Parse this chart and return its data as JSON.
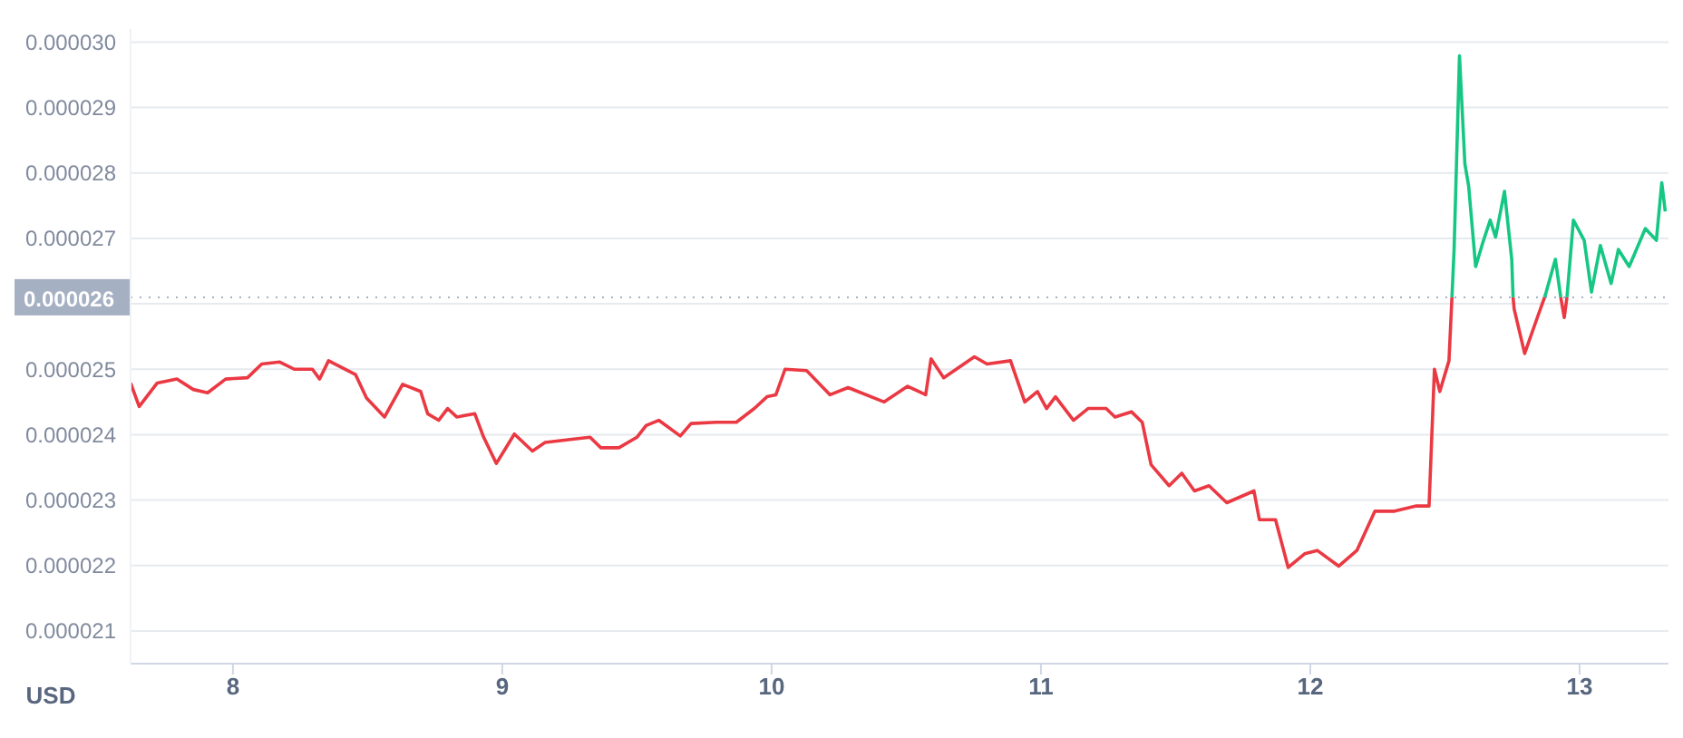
{
  "chart_data": {
    "type": "line",
    "ylabel": "USD",
    "xlim": [
      7.62,
      13.33
    ],
    "xticks": [
      8,
      9,
      10,
      11,
      12,
      13
    ],
    "ylim": [
      2.05e-05,
      3.02e-05
    ],
    "yticks": [
      {
        "value": 2.1e-05,
        "label": "0.000021"
      },
      {
        "value": 2.2e-05,
        "label": "0.000022"
      },
      {
        "value": 2.3e-05,
        "label": "0.000023"
      },
      {
        "value": 2.4e-05,
        "label": "0.000024"
      },
      {
        "value": 2.5e-05,
        "label": "0.000025"
      },
      {
        "value": 2.6e-05,
        "label": null
      },
      {
        "value": 2.7e-05,
        "label": "0.000027"
      },
      {
        "value": 2.8e-05,
        "label": "0.000028"
      },
      {
        "value": 2.9e-05,
        "label": "0.000029"
      },
      {
        "value": 3e-05,
        "label": "0.000030"
      }
    ],
    "grid": "y",
    "marker": "none",
    "line_style": "solid",
    "ref_lines": [
      {
        "axis": "y",
        "value": 2.61e-05,
        "label": "0.000026",
        "color": "#a6b0c3",
        "line_style": "dotted"
      }
    ],
    "series": [
      {
        "color": "#ea3943",
        "x": [
          7.62,
          7.652,
          7.719,
          7.792,
          7.853,
          7.906,
          7.973,
          8.054,
          8.107,
          8.174,
          8.228,
          8.295,
          8.322,
          8.355,
          8.455,
          8.496,
          8.563,
          8.63,
          8.697,
          8.723,
          8.764,
          8.797,
          8.831,
          8.898,
          8.931,
          8.978,
          9.045,
          9.112,
          9.159,
          9.259,
          9.326,
          9.366,
          9.433,
          9.5,
          9.534,
          9.581,
          9.661,
          9.701,
          9.795,
          9.869,
          9.936,
          9.983,
          10.016,
          10.05,
          10.13,
          10.217,
          10.284,
          10.418,
          10.505,
          10.572,
          10.592,
          10.639,
          10.753,
          10.8,
          10.887,
          10.94,
          10.987,
          11.021,
          11.054,
          11.121,
          11.175,
          11.242,
          11.275,
          11.336,
          11.376,
          11.409,
          11.476,
          11.523,
          11.57,
          11.624,
          11.69,
          11.791,
          11.811,
          11.871,
          11.918,
          11.979,
          12.026,
          12.106,
          12.173,
          12.24,
          12.313,
          12.394,
          12.441,
          12.461,
          12.481,
          12.515,
          12.526,
          12.6,
          12.753,
          12.757,
          12.796,
          12.843,
          12.87,
          12.9,
          12.93,
          12.943,
          12.953
        ],
        "values": [
          2.479e-05,
          2.443e-05,
          2.479e-05,
          2.485e-05,
          2.469e-05,
          2.464e-05,
          2.485e-05,
          2.487e-05,
          2.508e-05,
          2.511e-05,
          2.5e-05,
          2.5e-05,
          2.485e-05,
          2.513e-05,
          2.492e-05,
          2.456e-05,
          2.427e-05,
          2.477e-05,
          2.466e-05,
          2.432e-05,
          2.422e-05,
          2.44e-05,
          2.427e-05,
          2.432e-05,
          2.396e-05,
          2.356e-05,
          2.401e-05,
          2.375e-05,
          2.388e-05,
          2.393e-05,
          2.396e-05,
          2.38e-05,
          2.38e-05,
          2.396e-05,
          2.414e-05,
          2.422e-05,
          2.398e-05,
          2.417e-05,
          2.419e-05,
          2.419e-05,
          2.44e-05,
          2.458e-05,
          2.461e-05,
          2.5e-05,
          2.498e-05,
          2.461e-05,
          2.472e-05,
          2.45e-05,
          2.474e-05,
          2.461e-05,
          2.516e-05,
          2.487e-05,
          2.519e-05,
          2.508e-05,
          2.513e-05,
          2.45e-05,
          2.466e-05,
          2.44e-05,
          2.458e-05,
          2.422e-05,
          2.44e-05,
          2.44e-05,
          2.427e-05,
          2.435e-05,
          2.419e-05,
          2.354e-05,
          2.322e-05,
          2.341e-05,
          2.314e-05,
          2.322e-05,
          2.296e-05,
          2.314e-05,
          2.27e-05,
          2.27e-05,
          2.197e-05,
          2.218e-05,
          2.223e-05,
          2.199e-05,
          2.223e-05,
          2.283e-05,
          2.283e-05,
          2.291e-05,
          2.291e-05,
          2.5e-05,
          2.466e-05,
          2.513e-05,
          2.61e-05,
          null,
          2.61e-05,
          2.592e-05,
          2.524e-05,
          2.579e-05,
          2.61e-05,
          null,
          2.61e-05,
          2.579e-05,
          2.61e-05
        ]
      },
      {
        "color": "#16c784",
        "x": [
          12.526,
          12.534,
          12.554,
          12.574,
          12.588,
          12.614,
          12.641,
          12.668,
          12.688,
          12.721,
          12.748,
          12.753,
          12.8,
          12.87,
          12.876,
          12.91,
          12.93,
          12.94,
          12.953,
          12.977,
          13.017,
          13.044,
          13.077,
          13.117,
          13.144,
          13.184,
          13.244,
          13.285,
          13.305,
          13.318
        ],
        "values": [
          2.61e-05,
          2.683e-05,
          2.979e-05,
          2.814e-05,
          2.78e-05,
          2.657e-05,
          2.694e-05,
          2.728e-05,
          2.702e-05,
          2.772e-05,
          2.668e-05,
          2.61e-05,
          null,
          2.61e-05,
          2.618e-05,
          2.668e-05,
          2.61e-05,
          null,
          2.61e-05,
          2.728e-05,
          2.697e-05,
          2.618e-05,
          2.689e-05,
          2.631e-05,
          2.683e-05,
          2.657e-05,
          2.715e-05,
          2.697e-05,
          2.785e-05,
          2.741e-05
        ]
      }
    ]
  }
}
